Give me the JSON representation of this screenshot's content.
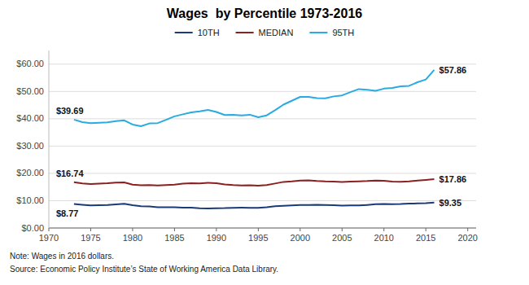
{
  "chart_data": {
    "type": "line",
    "title": "Wages  by Percentile 1973-2016",
    "notes": [
      "Note: Wages in 2016 dollars.",
      "Source: Economic Policy Institute’s State of Working America Data Library."
    ],
    "x": [
      1973,
      1974,
      1975,
      1976,
      1977,
      1978,
      1979,
      1980,
      1981,
      1982,
      1983,
      1984,
      1985,
      1986,
      1987,
      1988,
      1989,
      1990,
      1991,
      1992,
      1993,
      1994,
      1995,
      1996,
      1997,
      1998,
      1999,
      2000,
      2001,
      2002,
      2003,
      2004,
      2005,
      2006,
      2007,
      2008,
      2009,
      2010,
      2011,
      2012,
      2013,
      2014,
      2015,
      2016
    ],
    "series": [
      {
        "name": "10TH",
        "color": "#1a3a7a",
        "start_label": "$8.77",
        "end_label": "$9.35",
        "values": [
          8.77,
          8.49,
          8.24,
          8.34,
          8.41,
          8.66,
          8.84,
          8.35,
          8.01,
          7.89,
          7.64,
          7.57,
          7.58,
          7.48,
          7.42,
          7.24,
          7.18,
          7.25,
          7.28,
          7.41,
          7.42,
          7.39,
          7.37,
          7.62,
          7.96,
          8.16,
          8.26,
          8.41,
          8.39,
          8.49,
          8.46,
          8.33,
          8.22,
          8.24,
          8.24,
          8.46,
          8.72,
          8.81,
          8.74,
          8.8,
          8.94,
          9.0,
          9.12,
          9.35
        ]
      },
      {
        "name": "MEDIAN",
        "color": "#8b2020",
        "start_label": "$16.74",
        "end_label": "$17.86",
        "values": [
          16.74,
          16.35,
          16.08,
          16.28,
          16.37,
          16.65,
          16.69,
          15.9,
          15.64,
          15.74,
          15.6,
          15.72,
          15.87,
          16.28,
          16.39,
          16.3,
          16.55,
          16.37,
          15.97,
          15.71,
          15.56,
          15.65,
          15.54,
          15.73,
          16.29,
          16.88,
          17.09,
          17.37,
          17.45,
          17.21,
          17.05,
          17.0,
          16.88,
          16.99,
          17.1,
          17.19,
          17.37,
          17.3,
          17.0,
          16.91,
          17.09,
          17.4,
          17.6,
          17.86
        ]
      },
      {
        "name": "95TH",
        "color": "#29abe2",
        "start_label": "$39.69",
        "end_label": "$57.86",
        "values": [
          39.69,
          38.76,
          38.37,
          38.54,
          38.67,
          39.13,
          39.42,
          37.88,
          37.29,
          38.29,
          38.42,
          39.6,
          40.88,
          41.63,
          42.34,
          42.73,
          43.26,
          42.5,
          41.37,
          41.46,
          41.24,
          41.48,
          40.55,
          41.23,
          43.11,
          45.17,
          46.58,
          48.0,
          48.0,
          47.54,
          47.47,
          48.19,
          48.56,
          49.76,
          50.87,
          50.58,
          50.24,
          51.03,
          51.3,
          51.89,
          52.06,
          53.37,
          54.38,
          57.86
        ]
      }
    ],
    "xlim": [
      1970,
      2021
    ],
    "xticks": [
      1970,
      1975,
      1980,
      1985,
      1990,
      1995,
      2000,
      2005,
      2010,
      2015,
      2020
    ],
    "ylim": [
      0,
      65
    ],
    "yticks": [
      {
        "value": 0,
        "label": "$0.00"
      },
      {
        "value": 10,
        "label": "$10.00"
      },
      {
        "value": 20,
        "label": "$20.00"
      },
      {
        "value": 30,
        "label": "$30.00"
      },
      {
        "value": 40,
        "label": "$40.00"
      },
      {
        "value": 50,
        "label": "$50.00"
      },
      {
        "value": 60,
        "label": "$60.00"
      }
    ],
    "grid": true,
    "legend": "top"
  }
}
